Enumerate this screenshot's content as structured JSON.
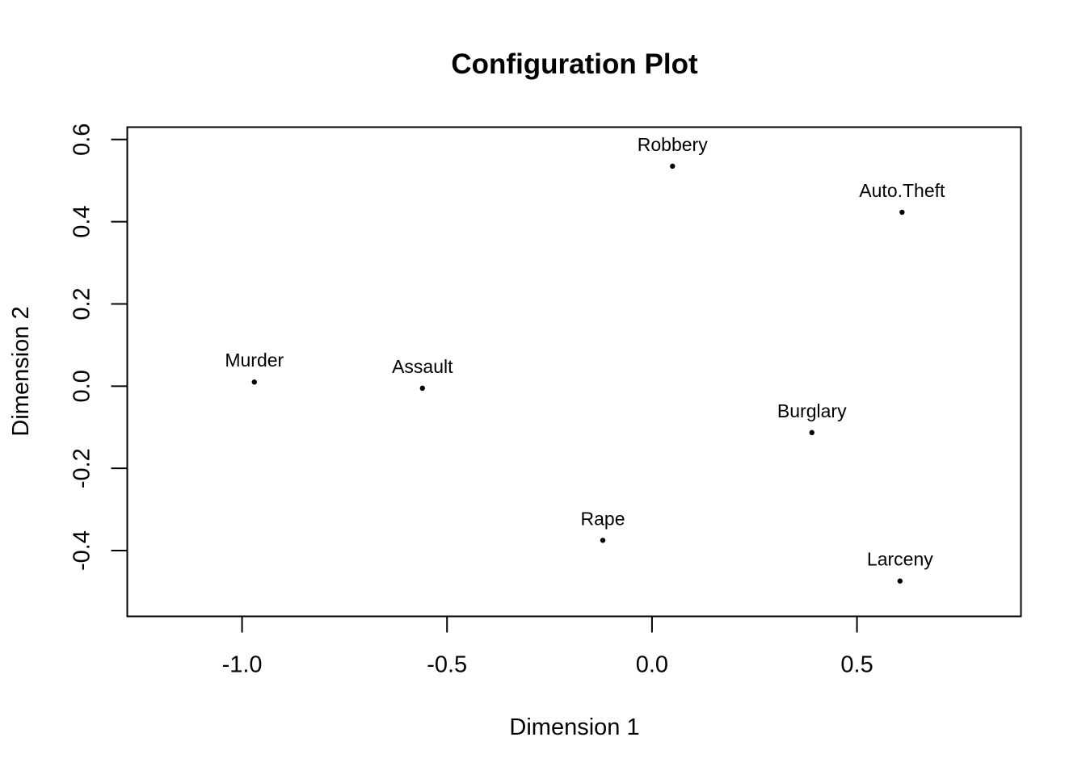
{
  "chart_data": {
    "type": "scatter",
    "title": "Configuration Plot",
    "xlabel": "Dimension 1",
    "ylabel": "Dimension 2",
    "xlim": [
      -1.28,
      0.9
    ],
    "ylim": [
      -0.56,
      0.63
    ],
    "x_ticks": [
      -1.0,
      -0.5,
      0.0,
      0.5
    ],
    "x_tick_labels": [
      "-1.0",
      "-0.5",
      "0.0",
      "0.5"
    ],
    "y_ticks": [
      -0.4,
      -0.2,
      0.0,
      0.2,
      0.4,
      0.6
    ],
    "y_tick_labels": [
      "-0.4",
      "-0.2",
      "0.0",
      "0.2",
      "0.4",
      "0.6"
    ],
    "grid": false,
    "legend": "none",
    "point_color": "#000000",
    "points": [
      {
        "label": "Murder",
        "x": -0.97,
        "y": 0.01
      },
      {
        "label": "Assault",
        "x": -0.56,
        "y": -0.005
      },
      {
        "label": "Robbery",
        "x": 0.05,
        "y": 0.535
      },
      {
        "label": "Auto.Theft",
        "x": 0.61,
        "y": 0.423
      },
      {
        "label": "Burglary",
        "x": 0.39,
        "y": -0.113
      },
      {
        "label": "Rape",
        "x": -0.12,
        "y": -0.375
      },
      {
        "label": "Larceny",
        "x": 0.605,
        "y": -0.474
      }
    ]
  }
}
